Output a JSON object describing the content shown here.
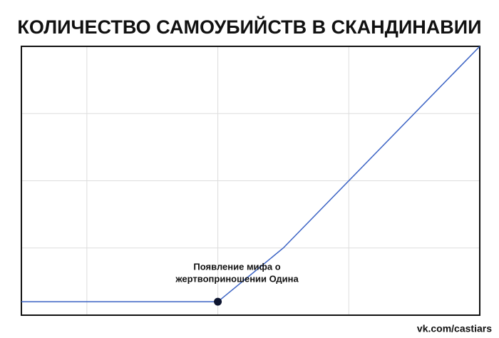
{
  "chart_data": {
    "type": "line",
    "title": "КОЛИЧЕСТВО САМОУБИЙСТВ В СКАНДИНАВИИ",
    "x": [
      0,
      1.5,
      2,
      3.5
    ],
    "series": [
      {
        "color": "#3a62c4",
        "values": [
          0.2,
          0.2,
          1,
          4
        ]
      }
    ],
    "xlim": [
      0,
      3.5
    ],
    "ylim": [
      0,
      4
    ],
    "xticks": [
      0.5,
      1.5,
      2.5
    ],
    "yticks": [
      1,
      2,
      3
    ],
    "grid": true,
    "annotation": {
      "text": [
        "Появление мифа о",
        "жертвоприношении Одина"
      ],
      "x": 1.5,
      "y": 0.2
    },
    "source": "vk.com/castiars"
  }
}
